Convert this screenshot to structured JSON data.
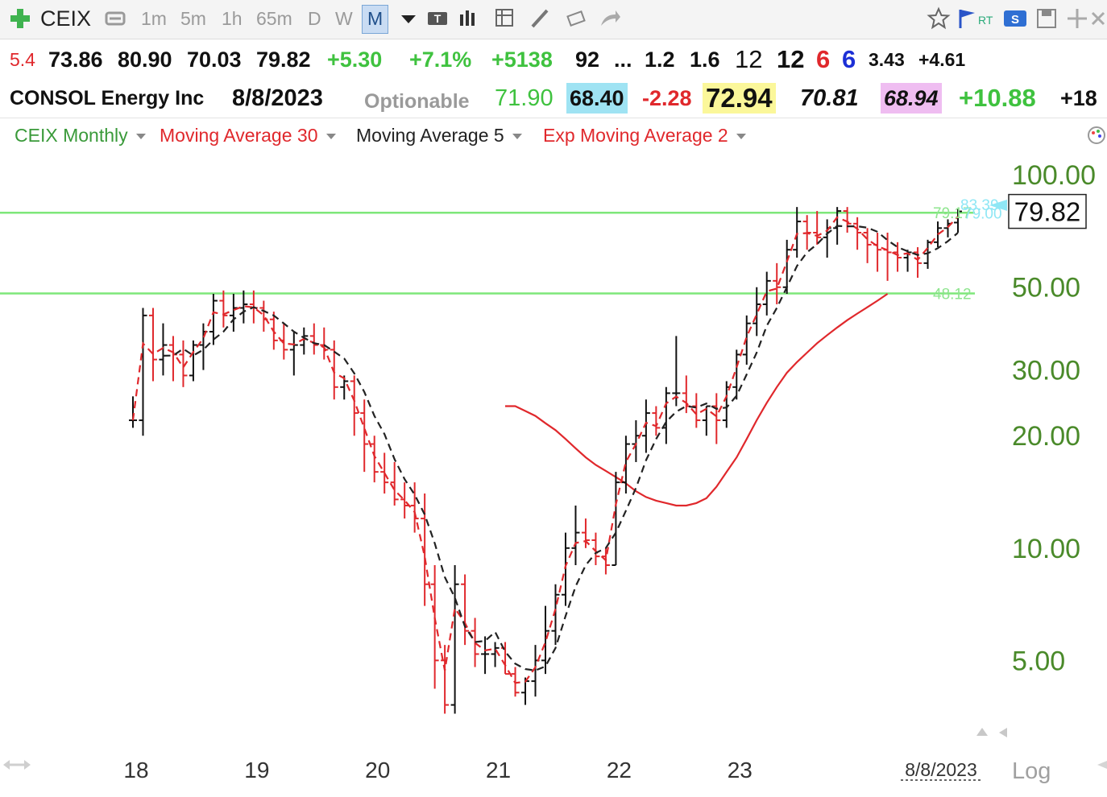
{
  "toolbar": {
    "symbol": "CEIX",
    "timeframes": [
      "1m",
      "5m",
      "1h",
      "65m",
      "D",
      "W",
      "M"
    ],
    "active_timeframe": "M"
  },
  "quote": {
    "r1": [
      "5.4",
      "73.86",
      "80.90",
      "70.03",
      "79.82",
      "+5.30",
      "+7.1%",
      "+5138",
      "92",
      "...",
      "1.2",
      "1.6",
      "12",
      "12",
      "6",
      "6",
      "3.43",
      "+4.61"
    ],
    "company": "CONSOL Energy Inc",
    "date": "8/8/2023",
    "optionable": "Optionable",
    "r2": [
      "71.90",
      "68.40",
      "-2.28",
      "72.94",
      "70.81",
      "68.94",
      "+10.88",
      "+18"
    ],
    "chip_colors": {
      "cyan": "#9fe3f3",
      "yellow": "#fbf79a",
      "pink": "#efbdf1"
    }
  },
  "legend": [
    {
      "label": "CEIX Monthly",
      "color": "#3a9a3a"
    },
    {
      "label": "Moving Average 30",
      "color": "#e0282c"
    },
    {
      "label": "Moving Average 5",
      "color": "#222222"
    },
    {
      "label": "Exp Moving Average 2",
      "color": "#e0282c"
    }
  ],
  "chart_data": {
    "type": "line",
    "scale": "log",
    "ylim": [
      3.4,
      110
    ],
    "y_ticks": [
      {
        "label": "100.00",
        "value": 100
      },
      {
        "label": "50.00",
        "value": 50
      },
      {
        "label": "30.00",
        "value": 30
      },
      {
        "label": "20.00",
        "value": 20
      },
      {
        "label": "10.00",
        "value": 10
      },
      {
        "label": "5.00",
        "value": 5
      }
    ],
    "x_ticks": [
      {
        "label": "18",
        "month": 0
      },
      {
        "label": "19",
        "month": 12
      },
      {
        "label": "20",
        "month": 24
      },
      {
        "label": "21",
        "month": 36
      },
      {
        "label": "22",
        "month": 48
      },
      {
        "label": "23",
        "month": 60
      }
    ],
    "x_end_label": "8/8/2023",
    "log_label": "Log",
    "last_price_label": "79.82",
    "last_price": 79.82,
    "hlines": [
      79.17,
      48.12
    ],
    "annotations": [
      {
        "text": "83.39",
        "value": 83.39,
        "color": "#8fe7f5"
      },
      {
        "text": "79.17",
        "value": 79.17,
        "color": "#8ee58e"
      },
      {
        "text": "79.00",
        "value": 79.0,
        "color": "#8fe7f5"
      },
      {
        "text": "48.12",
        "value": 48.12,
        "color": "#8ee58e"
      }
    ],
    "bars": [
      [
        22,
        25.5,
        21,
        22
      ],
      [
        22,
        44,
        20,
        42
      ],
      [
        42,
        44,
        28,
        32
      ],
      [
        32,
        40,
        29,
        35
      ],
      [
        35,
        37,
        28,
        33
      ],
      [
        33,
        36,
        27,
        29
      ],
      [
        29,
        36,
        28,
        35
      ],
      [
        35,
        40,
        30,
        38
      ],
      [
        38,
        48,
        35,
        46
      ],
      [
        46,
        49,
        39,
        42
      ],
      [
        42,
        48,
        38,
        44
      ],
      [
        44,
        49,
        40,
        45
      ],
      [
        45,
        49,
        40,
        44
      ],
      [
        44,
        46,
        38,
        41
      ],
      [
        41,
        43,
        34,
        36
      ],
      [
        36,
        40,
        32,
        34
      ],
      [
        34,
        38,
        29,
        35
      ],
      [
        35,
        39,
        33,
        37
      ],
      [
        37,
        40,
        33,
        35
      ],
      [
        35,
        39,
        32,
        34
      ],
      [
        34,
        36,
        25,
        27
      ],
      [
        27,
        29,
        25,
        28
      ],
      [
        28,
        29,
        20,
        23
      ],
      [
        23,
        25,
        16,
        19
      ],
      [
        19,
        20,
        15,
        16
      ],
      [
        16,
        18,
        14,
        15
      ],
      [
        15,
        17,
        13,
        13.5
      ],
      [
        13.5,
        15,
        12,
        13
      ],
      [
        13,
        15,
        11,
        12
      ],
      [
        12,
        14,
        7,
        8
      ],
      [
        8,
        9,
        4.2,
        5
      ],
      [
        5,
        5.5,
        3.6,
        3.8
      ],
      [
        3.8,
        9,
        3.6,
        8
      ],
      [
        8,
        8.5,
        5.5,
        6
      ],
      [
        6,
        6.5,
        4.8,
        5.2
      ],
      [
        5.2,
        5.8,
        4.6,
        5.2
      ],
      [
        5.2,
        5.6,
        4.8,
        5.4
      ],
      [
        5.4,
        5.6,
        4.6,
        4.6
      ],
      [
        4.6,
        4.8,
        4.0,
        4.1
      ],
      [
        4.1,
        4.5,
        3.8,
        4.4
      ],
      [
        4.4,
        5.5,
        4.0,
        5.0
      ],
      [
        5.0,
        7.0,
        4.6,
        6.0
      ],
      [
        6.0,
        8.0,
        5.5,
        7.5
      ],
      [
        7.5,
        11,
        7.0,
        10
      ],
      [
        10,
        13,
        9,
        11
      ],
      [
        11,
        12,
        10,
        10.5
      ],
      [
        10.5,
        11,
        9,
        9.5
      ],
      [
        9.5,
        10,
        8.5,
        9
      ],
      [
        9,
        16,
        9,
        15
      ],
      [
        15,
        20,
        14,
        19
      ],
      [
        19,
        22,
        17,
        20
      ],
      [
        20,
        25,
        18,
        23
      ],
      [
        23,
        24,
        20,
        21
      ],
      [
        21,
        27,
        19,
        26
      ],
      [
        26,
        37,
        24,
        26
      ],
      [
        26,
        29,
        23,
        24
      ],
      [
        24,
        26,
        21,
        22
      ],
      [
        22,
        24,
        20,
        24
      ],
      [
        24,
        26,
        19,
        22
      ],
      [
        22,
        28,
        21,
        27
      ],
      [
        27,
        34,
        25,
        33
      ],
      [
        33,
        42,
        31,
        40
      ],
      [
        40,
        50,
        37,
        45
      ],
      [
        45,
        55,
        42,
        52
      ],
      [
        52,
        58,
        45,
        50
      ],
      [
        50,
        67,
        48,
        63
      ],
      [
        63,
        82,
        60,
        75
      ],
      [
        75,
        78,
        63,
        70
      ],
      [
        70,
        80,
        65,
        68
      ],
      [
        68,
        76,
        60,
        72
      ],
      [
        72,
        82,
        65,
        80
      ],
      [
        80,
        82,
        70,
        74
      ],
      [
        74,
        77,
        63,
        70
      ],
      [
        70,
        72,
        58,
        65
      ],
      [
        65,
        70,
        55,
        63
      ],
      [
        63,
        70,
        52,
        62
      ],
      [
        62,
        66,
        55,
        60
      ],
      [
        60,
        63,
        55,
        62
      ],
      [
        62,
        64,
        53,
        58
      ],
      [
        58,
        67,
        56,
        66
      ],
      [
        66,
        75,
        64,
        72
      ],
      [
        72,
        76,
        68,
        74
      ],
      [
        74.5,
        80.9,
        70,
        79.82
      ]
    ],
    "ma30_start_month": 37,
    "series": [
      {
        "name": "Moving Average 30",
        "role": "ma30",
        "color": "#e0282c",
        "dash": "none",
        "values": [
          24.0,
          24.0,
          23.3,
          22.6,
          21.6,
          20.7,
          19.6,
          18.5,
          17.5,
          16.7,
          16.1,
          15.5,
          14.9,
          14.2,
          13.7,
          13.4,
          13.2,
          13.0,
          13.0,
          13.2,
          13.6,
          14.6,
          16.0,
          17.5,
          19.6,
          22.0,
          24.5,
          27.0,
          29.5,
          31.5,
          33.4,
          35.4,
          37.2,
          39.0,
          40.8,
          42.5,
          44.2,
          46.0,
          48.0
        ]
      },
      {
        "name": "Moving Average 5",
        "role": "ma5",
        "color": "#222222",
        "dash": "9,6",
        "values": null
      },
      {
        "name": "Exp Moving Average 2",
        "role": "ema2",
        "color": "#e0282c",
        "dash": "9,6",
        "values": null
      }
    ]
  }
}
